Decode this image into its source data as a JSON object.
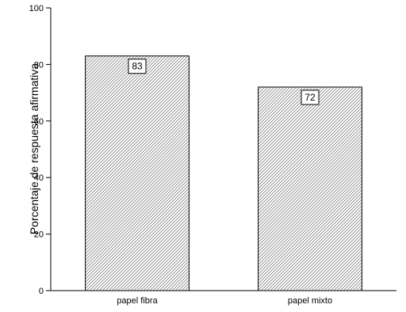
{
  "chart_data": {
    "type": "bar",
    "categories": [
      "papel fibra",
      "papel mixto"
    ],
    "values": [
      83,
      72
    ],
    "data_labels": [
      "83",
      "72"
    ],
    "title": "",
    "xlabel": "",
    "ylabel": "Porcentaje de respuesta afirmativa",
    "ylim": [
      0,
      100
    ],
    "yticks": [
      "0",
      "20",
      "40",
      "60",
      "80",
      "100"
    ],
    "grid": false,
    "bar_fill": "hatched-gray",
    "bar_edge_color": "#000000"
  }
}
